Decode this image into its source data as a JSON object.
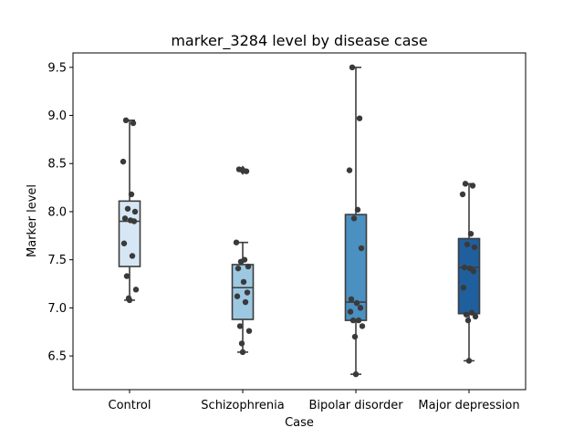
{
  "chart_data": {
    "type": "box",
    "title": "marker_3284 level by disease case",
    "xlabel": "Case",
    "ylabel": "Marker level",
    "ylim": [
      6.15,
      9.65
    ],
    "yticks": [
      "6.5",
      "7.0",
      "7.5",
      "8.0",
      "8.5",
      "9.0",
      "9.5"
    ],
    "grid": false,
    "legend": "none",
    "categories": [
      "Control",
      "Schizophrenia",
      "Bipolar disorder",
      "Major depression"
    ],
    "colors": [
      "#d7e6f4",
      "#9cc8e2",
      "#4a90c1",
      "#205f9e"
    ],
    "boxes": [
      {
        "category": "Control",
        "whisker_low": 7.08,
        "q1": 7.43,
        "median": 7.9,
        "q3": 8.11,
        "whisker_high": 8.95,
        "outliers": []
      },
      {
        "category": "Schizophrenia",
        "whisker_low": 6.54,
        "q1": 6.88,
        "median": 7.21,
        "q3": 7.45,
        "whisker_high": 7.68,
        "outliers": [
          8.42,
          8.44
        ]
      },
      {
        "category": "Bipolar disorder",
        "whisker_low": 6.31,
        "q1": 6.87,
        "median": 7.06,
        "q3": 7.97,
        "whisker_high": 9.5,
        "outliers": []
      },
      {
        "category": "Major depression",
        "whisker_low": 6.45,
        "q1": 6.94,
        "median": 7.42,
        "q3": 7.72,
        "whisker_high": 8.29,
        "outliers": []
      }
    ],
    "points": [
      [
        8.95,
        8.92,
        8.52,
        8.18,
        8.03,
        8.0,
        7.93,
        7.91,
        7.9,
        7.67,
        7.54,
        7.33,
        7.19,
        7.1,
        7.08
      ],
      [
        8.44,
        8.42,
        7.68,
        7.5,
        7.48,
        7.43,
        7.41,
        7.27,
        7.16,
        7.12,
        7.06,
        6.81,
        6.76,
        6.63,
        6.54
      ],
      [
        9.5,
        8.97,
        8.43,
        8.02,
        7.93,
        7.62,
        7.09,
        7.05,
        7.0,
        6.96,
        6.87,
        6.87,
        6.81,
        6.7,
        6.31
      ],
      [
        8.29,
        8.27,
        8.18,
        7.77,
        7.66,
        7.63,
        7.42,
        7.41,
        7.38,
        7.21,
        6.95,
        6.93,
        6.91,
        6.87,
        6.45
      ]
    ]
  }
}
